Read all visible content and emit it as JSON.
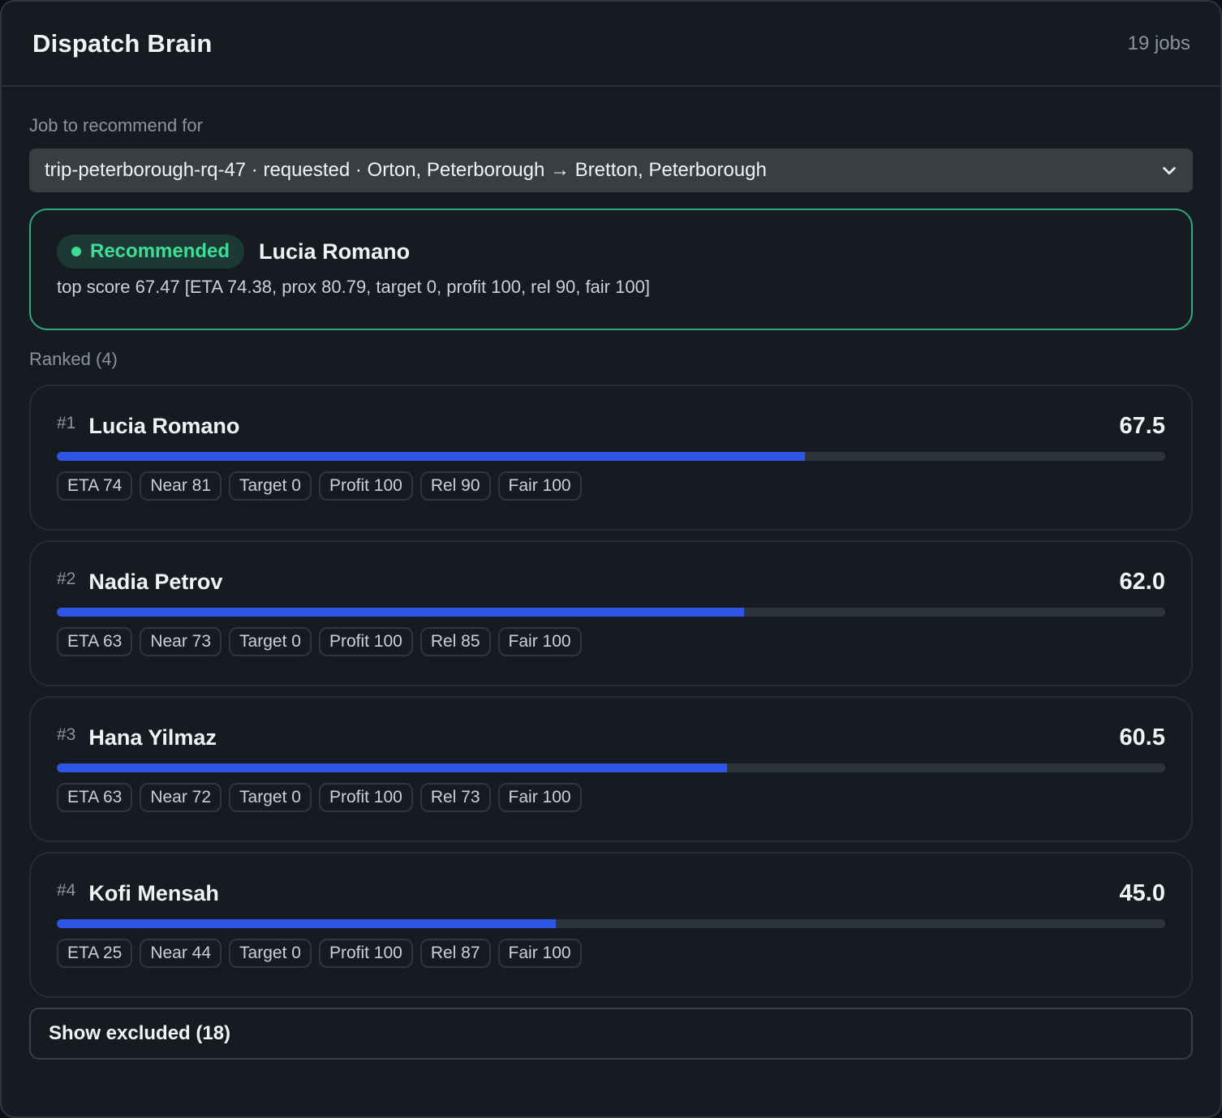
{
  "header": {
    "title": "Dispatch Brain",
    "job_count": "19 jobs"
  },
  "job_select": {
    "label": "Job to recommend for",
    "value": "trip-peterborough-rq-47 · requested · Orton, Peterborough → Bretton, Peterborough",
    "icon": "chevron-down-icon"
  },
  "recommendation": {
    "badge": "Recommended",
    "name": "Lucia Romano",
    "detail": "top score 67.47 [ETA 74.38, prox 80.79, target 0, profit 100, rel 90, fair 100]"
  },
  "ranked": {
    "label": "Ranked (4)",
    "items": [
      {
        "rank": "#1",
        "name": "Lucia Romano",
        "score": "67.5",
        "fill_percent": 67.5,
        "chips": [
          "ETA 74",
          "Near 81",
          "Target 0",
          "Profit 100",
          "Rel 90",
          "Fair 100"
        ]
      },
      {
        "rank": "#2",
        "name": "Nadia Petrov",
        "score": "62.0",
        "fill_percent": 62.0,
        "chips": [
          "ETA 63",
          "Near 73",
          "Target 0",
          "Profit 100",
          "Rel 85",
          "Fair 100"
        ]
      },
      {
        "rank": "#3",
        "name": "Hana Yilmaz",
        "score": "60.5",
        "fill_percent": 60.5,
        "chips": [
          "ETA 63",
          "Near 72",
          "Target 0",
          "Profit 100",
          "Rel 73",
          "Fair 100"
        ]
      },
      {
        "rank": "#4",
        "name": "Kofi Mensah",
        "score": "45.0",
        "fill_percent": 45.0,
        "chips": [
          "ETA 25",
          "Near 44",
          "Target 0",
          "Profit 100",
          "Rel 87",
          "Fair 100"
        ]
      }
    ]
  },
  "show_excluded": {
    "label": "Show excluded (18)"
  },
  "colors": {
    "accent_bar": "#2f55e4",
    "recommended": "#3ddc97",
    "recommended_border": "#2ea784"
  }
}
